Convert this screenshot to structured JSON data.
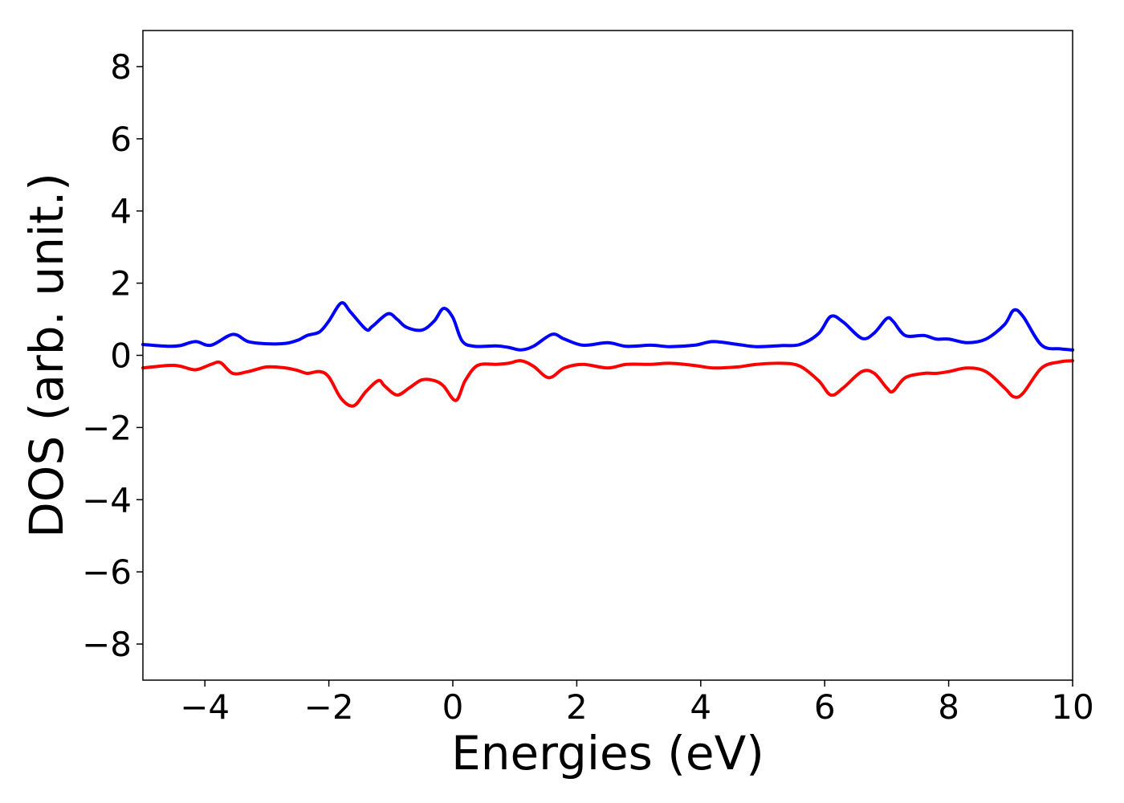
{
  "chart_data": {
    "type": "line",
    "title": "",
    "xlabel": "Energies (eV)",
    "ylabel": "DOS (arb. unit.)",
    "xlim": [
      -5,
      10
    ],
    "ylim": [
      -9,
      9
    ],
    "xticks": [
      -4,
      -2,
      0,
      2,
      4,
      6,
      8,
      10
    ],
    "yticks": [
      -8,
      -6,
      -4,
      -2,
      0,
      2,
      4,
      6,
      8
    ],
    "grid": false,
    "legend": "none",
    "series": [
      {
        "color": "#0000ff",
        "x": [
          -5.0,
          -4.6,
          -4.4,
          -4.15,
          -3.9,
          -3.55,
          -3.3,
          -3.0,
          -2.7,
          -2.5,
          -2.35,
          -2.15,
          -2.0,
          -1.8,
          -1.65,
          -1.4,
          -1.3,
          -1.05,
          -0.9,
          -0.75,
          -0.5,
          -0.3,
          -0.15,
          0.0,
          0.15,
          0.35,
          0.7,
          0.9,
          1.1,
          1.3,
          1.6,
          1.8,
          2.1,
          2.5,
          2.8,
          3.2,
          3.5,
          3.9,
          4.2,
          4.6,
          4.9,
          5.3,
          5.6,
          5.9,
          6.1,
          6.3,
          6.6,
          6.8,
          7.0,
          7.1,
          7.3,
          7.6,
          7.8,
          8.0,
          8.3,
          8.6,
          8.9,
          9.05,
          9.2,
          9.5,
          9.8,
          10.0
        ],
        "values": [
          0.3,
          0.25,
          0.27,
          0.38,
          0.28,
          0.58,
          0.38,
          0.32,
          0.33,
          0.42,
          0.55,
          0.65,
          0.95,
          1.45,
          1.2,
          0.72,
          0.8,
          1.15,
          1.0,
          0.78,
          0.7,
          0.95,
          1.3,
          1.05,
          0.4,
          0.25,
          0.26,
          0.22,
          0.15,
          0.25,
          0.58,
          0.45,
          0.28,
          0.35,
          0.25,
          0.28,
          0.24,
          0.28,
          0.38,
          0.3,
          0.24,
          0.27,
          0.3,
          0.6,
          1.08,
          0.92,
          0.47,
          0.62,
          1.02,
          0.95,
          0.55,
          0.55,
          0.45,
          0.45,
          0.35,
          0.45,
          0.85,
          1.25,
          1.08,
          0.28,
          0.18,
          0.15
        ]
      },
      {
        "color": "#ff0000",
        "x": [
          -5.0,
          -4.6,
          -4.4,
          -4.15,
          -3.9,
          -3.75,
          -3.55,
          -3.3,
          -3.0,
          -2.7,
          -2.5,
          -2.35,
          -2.15,
          -2.0,
          -1.8,
          -1.6,
          -1.4,
          -1.2,
          -1.1,
          -0.9,
          -0.7,
          -0.5,
          -0.3,
          -0.15,
          0.05,
          0.2,
          0.4,
          0.7,
          0.9,
          1.1,
          1.3,
          1.55,
          1.8,
          2.1,
          2.5,
          2.8,
          3.2,
          3.5,
          3.9,
          4.2,
          4.6,
          4.9,
          5.3,
          5.6,
          5.9,
          6.1,
          6.3,
          6.6,
          6.8,
          7.0,
          7.1,
          7.3,
          7.6,
          7.8,
          8.0,
          8.3,
          8.6,
          8.9,
          9.05,
          9.2,
          9.5,
          9.8,
          10.0
        ],
        "values": [
          -0.35,
          -0.28,
          -0.3,
          -0.4,
          -0.25,
          -0.2,
          -0.5,
          -0.45,
          -0.32,
          -0.35,
          -0.42,
          -0.5,
          -0.45,
          -0.6,
          -1.2,
          -1.4,
          -1.0,
          -0.7,
          -0.85,
          -1.1,
          -0.9,
          -0.68,
          -0.7,
          -0.85,
          -1.25,
          -0.7,
          -0.28,
          -0.25,
          -0.22,
          -0.15,
          -0.3,
          -0.62,
          -0.35,
          -0.25,
          -0.35,
          -0.25,
          -0.25,
          -0.22,
          -0.28,
          -0.35,
          -0.32,
          -0.25,
          -0.22,
          -0.3,
          -0.7,
          -1.1,
          -0.9,
          -0.45,
          -0.5,
          -0.9,
          -1.0,
          -0.62,
          -0.5,
          -0.5,
          -0.45,
          -0.35,
          -0.45,
          -0.9,
          -1.15,
          -1.05,
          -0.35,
          -0.18,
          -0.15
        ]
      }
    ]
  }
}
